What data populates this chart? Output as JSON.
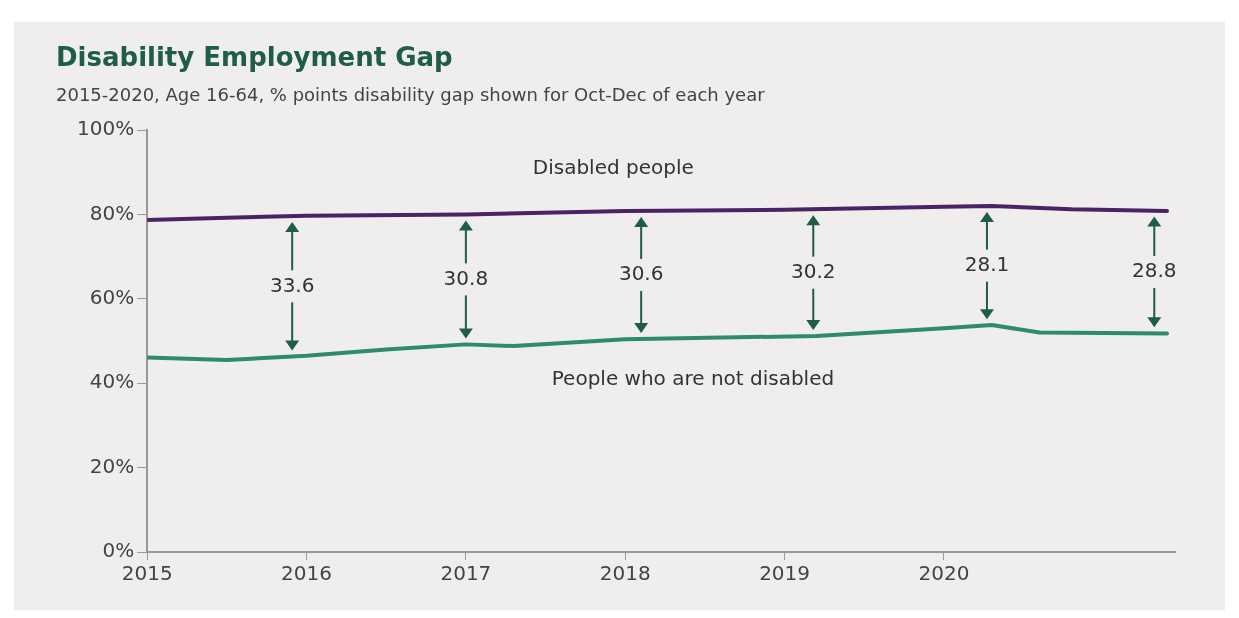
{
  "chart_data": {
    "type": "line",
    "title": "Disability Employment Gap",
    "subtitle": "2015-2020, Age 16-64, % points disability gap shown for Oct-Dec of each year",
    "series": [
      {
        "name": "Disabled people",
        "color": "#4b2364",
        "x": [
          2015,
          2015.5,
          2016,
          2017,
          2018,
          2019,
          2020,
          2020.3,
          2020.8,
          2021.4
        ],
        "values": [
          78.7,
          79.2,
          79.7,
          80.0,
          80.8,
          81.1,
          81.8,
          82.0,
          81.2,
          80.8
        ]
      },
      {
        "name": "People who are not disabled",
        "color": "#2e8b6e",
        "x": [
          2015,
          2015.5,
          2016,
          2016.5,
          2017,
          2017.3,
          2018,
          2019.2,
          2020,
          2020.3,
          2020.6,
          2021.4
        ],
        "values": [
          46.1,
          45.5,
          46.5,
          48.0,
          49.2,
          48.8,
          50.4,
          51.2,
          53.0,
          53.8,
          52.0,
          51.8
        ]
      }
    ],
    "xlim": [
      2015,
      2021.45
    ],
    "xticks": [
      2015,
      2016,
      2017,
      2018,
      2019,
      2020
    ],
    "ylim": [
      0,
      100
    ],
    "yticks": [
      {
        "value": 0,
        "label": "0%"
      },
      {
        "value": 20,
        "label": "20%"
      },
      {
        "value": 40,
        "label": "40%"
      },
      {
        "value": 60,
        "label": "60%"
      },
      {
        "value": 80,
        "label": "80%"
      },
      {
        "value": 100,
        "label": "100%"
      }
    ],
    "grid": false,
    "legend": false,
    "marker": "none",
    "line_style": "solid",
    "annotations": [
      {
        "text": "33.6",
        "x": 2015.91,
        "y": 79.6
      },
      {
        "text": "30.8",
        "x": 2017.0,
        "y": 80.0
      },
      {
        "text": "30.6",
        "x": 2018.1,
        "y": 80.8
      },
      {
        "text": "30.2",
        "x": 2019.18,
        "y": 81.2
      },
      {
        "text": "28.1",
        "x": 2020.27,
        "y": 82.0
      },
      {
        "text": "28.8",
        "x": 2021.32,
        "y": 80.9
      }
    ]
  }
}
